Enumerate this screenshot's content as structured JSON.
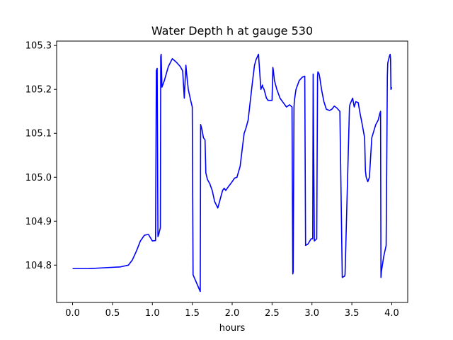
{
  "chart_data": {
    "type": "line",
    "title": "Water Depth h at gauge 530",
    "xlabel": "hours",
    "ylabel": "",
    "xlim": [
      -0.2,
      4.2
    ],
    "ylim": [
      104.715,
      105.31
    ],
    "xticks": [
      0.0,
      0.5,
      1.0,
      1.5,
      2.0,
      2.5,
      3.0,
      3.5,
      4.0
    ],
    "xtick_labels": [
      "0.0",
      "0.5",
      "1.0",
      "1.5",
      "2.0",
      "2.5",
      "3.0",
      "3.5",
      "4.0"
    ],
    "yticks": [
      104.8,
      104.9,
      105.0,
      105.1,
      105.2,
      105.3
    ],
    "ytick_labels": [
      "104.8",
      "104.9",
      "105.0",
      "105.1",
      "105.2",
      "105.3"
    ],
    "grid": false,
    "series": [
      {
        "color": "#0000ff",
        "x": [
          0.0,
          0.2,
          0.4,
          0.6,
          0.7,
          0.75,
          0.8,
          0.85,
          0.9,
          0.95,
          1.0,
          1.04,
          1.05,
          1.06,
          1.07,
          1.08,
          1.1,
          1.105,
          1.11,
          1.12,
          1.15,
          1.2,
          1.25,
          1.3,
          1.35,
          1.38,
          1.4,
          1.42,
          1.43,
          1.45,
          1.48,
          1.5,
          1.51,
          1.6,
          1.605,
          1.62,
          1.64,
          1.66,
          1.67,
          1.69,
          1.72,
          1.75,
          1.78,
          1.82,
          1.85,
          1.88,
          1.9,
          1.92,
          1.95,
          1.98,
          2.0,
          2.03,
          2.06,
          2.1,
          2.15,
          2.17,
          2.2,
          2.25,
          2.28,
          2.3,
          2.33,
          2.36,
          2.38,
          2.385,
          2.4,
          2.43,
          2.45,
          2.5,
          2.51,
          2.515,
          2.53,
          2.56,
          2.6,
          2.64,
          2.68,
          2.72,
          2.75,
          2.76,
          2.765,
          2.775,
          2.78,
          2.8,
          2.84,
          2.88,
          2.91,
          2.92,
          2.95,
          2.99,
          3.01,
          3.015,
          3.03,
          3.06,
          3.07,
          3.075,
          3.09,
          3.1,
          3.12,
          3.15,
          3.18,
          3.22,
          3.25,
          3.28,
          3.31,
          3.35,
          3.38,
          3.41,
          3.415,
          3.47,
          3.475,
          3.51,
          3.53,
          3.55,
          3.58,
          3.6,
          3.62,
          3.64,
          3.66,
          3.67,
          3.68,
          3.7,
          3.72,
          3.75,
          3.8,
          3.83,
          3.85,
          3.86,
          3.865,
          3.87,
          3.9,
          3.93,
          3.945,
          3.95,
          3.97,
          3.98,
          3.985,
          3.99,
          4.0
        ],
        "y": [
          104.792,
          104.792,
          104.794,
          104.796,
          104.8,
          104.812,
          104.832,
          104.855,
          104.868,
          104.87,
          104.855,
          104.856,
          105.243,
          105.248,
          104.865,
          104.87,
          104.885,
          105.275,
          105.28,
          105.205,
          105.22,
          105.252,
          105.27,
          105.262,
          105.252,
          105.242,
          105.18,
          105.255,
          105.235,
          105.2,
          105.175,
          105.16,
          104.778,
          104.74,
          105.12,
          105.11,
          105.09,
          105.085,
          105.01,
          104.995,
          104.985,
          104.97,
          104.945,
          104.93,
          104.95,
          104.97,
          104.975,
          104.97,
          104.978,
          104.985,
          104.99,
          104.998,
          105.0,
          105.025,
          105.1,
          105.11,
          105.13,
          105.21,
          105.255,
          105.268,
          105.28,
          105.2,
          105.21,
          105.205,
          105.2,
          105.18,
          105.175,
          105.175,
          105.25,
          105.245,
          105.22,
          105.2,
          105.18,
          105.17,
          105.16,
          105.165,
          105.16,
          104.78,
          104.785,
          105.16,
          105.175,
          105.2,
          105.22,
          105.228,
          105.23,
          104.845,
          104.848,
          104.86,
          104.86,
          105.235,
          104.855,
          104.86,
          105.23,
          105.24,
          105.235,
          105.225,
          105.2,
          105.172,
          105.155,
          105.152,
          105.155,
          105.162,
          105.158,
          105.15,
          104.772,
          104.775,
          104.78,
          105.158,
          105.165,
          105.18,
          105.16,
          105.172,
          105.17,
          105.148,
          105.13,
          105.11,
          105.09,
          105.015,
          105.0,
          104.99,
          105.0,
          105.09,
          105.12,
          105.13,
          105.145,
          105.15,
          104.772,
          104.785,
          104.82,
          104.845,
          105.23,
          105.26,
          105.275,
          105.28,
          105.27,
          105.2,
          105.205
        ]
      }
    ]
  }
}
